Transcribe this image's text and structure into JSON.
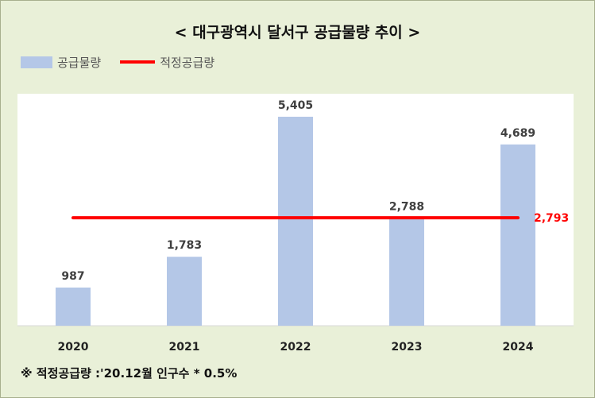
{
  "chart_data": {
    "type": "bar",
    "title": "< 대구광역시 달서구 공급물량 추이 >",
    "categories": [
      "2020",
      "2021",
      "2022",
      "2023",
      "2024"
    ],
    "series": [
      {
        "name": "공급물량",
        "type": "bar",
        "values": [
          987,
          1783,
          5405,
          2788,
          4689
        ]
      },
      {
        "name": "적정공급량",
        "type": "line",
        "values": [
          2793,
          2793,
          2793,
          2793,
          2793
        ]
      }
    ],
    "value_labels": [
      "987",
      "1,783",
      "5,405",
      "2,788",
      "4,689"
    ],
    "line_label": "2,793",
    "ylim": [
      0,
      6000
    ],
    "grid": false,
    "legend_position": "top-left",
    "colors": {
      "bar": "#b4c7e7",
      "line": "#ff0000",
      "plot_bg": "#ffffff",
      "chart_bg": "#e9f0d8"
    }
  },
  "footnote": "※ 적정공급량 :'20.12월 인구수 * 0.5%"
}
